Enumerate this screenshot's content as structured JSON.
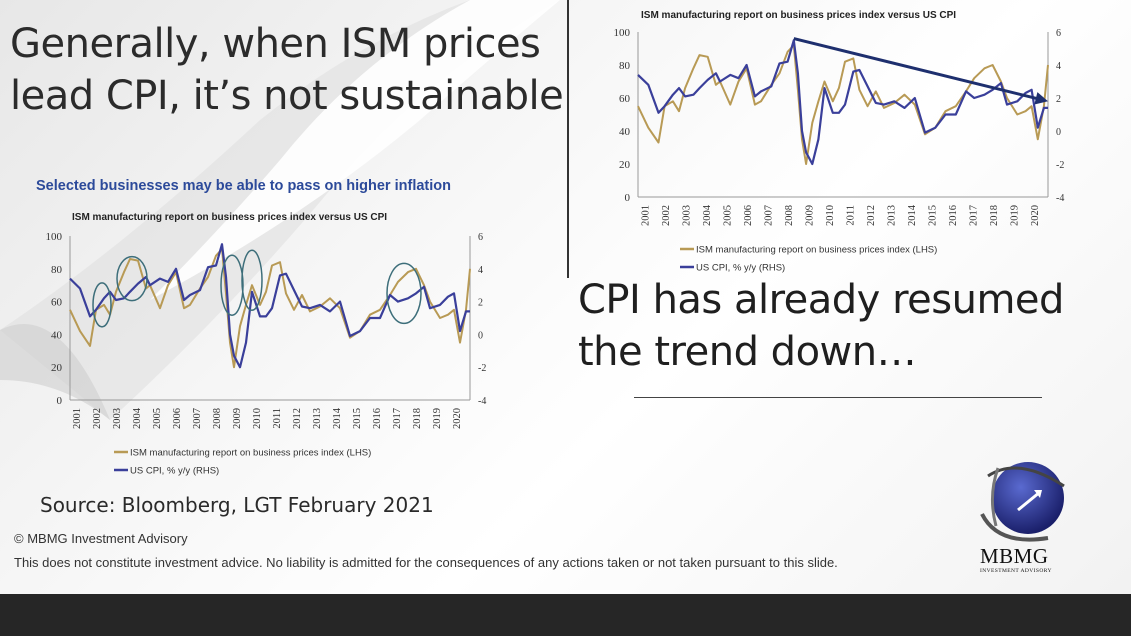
{
  "headline": {
    "line1": "Generally, when ISM prices",
    "line2": "lead CPI, it’s not sustainable"
  },
  "subtitle": {
    "line1": "CPI has already resumed",
    "line2": "the trend down…"
  },
  "source": "Source: Bloomberg, LGT February 2021",
  "copyright": "© MBMG Investment Advisory",
  "disclaimer": "This does not constitute investment advice. No liability is admitted for the consequences of any actions taken or not taken pursuant to this slide.",
  "logo": {
    "name": "MBMG",
    "tagline": "INVESTMENT ADVISORY",
    "icon": "globe-arrow-icon"
  },
  "colors": {
    "ism": "#b89a55",
    "cpi": "#3a3f9a",
    "title_blue": "#2c4a9a",
    "arrow": "#1e2f6e",
    "circle": "#3d6e7a"
  },
  "chart_data": [
    {
      "type": "line",
      "panel": "left",
      "title": "Selected businesses may be able to pass on higher inflation",
      "subtitle": "ISM manufacturing report on business prices index versus US CPI",
      "categories": [
        "2001",
        "2002",
        "2003",
        "2004",
        "2005",
        "2006",
        "2007",
        "2008",
        "2009",
        "2010",
        "2011",
        "2012",
        "2013",
        "2014",
        "2015",
        "2016",
        "2017",
        "2018",
        "2019",
        "2020"
      ],
      "ylim": [
        0,
        100
      ],
      "ylim_right": [
        -4,
        6
      ],
      "y_ticks": [
        "0",
        "20",
        "40",
        "60",
        "80",
        "100"
      ],
      "y_ticks_right": [
        "-4",
        "-2",
        "0",
        "2",
        "4",
        "6"
      ],
      "series": [
        {
          "name": "ISM manufacturing report on business prices index (LHS)",
          "axis": "left",
          "x": [
            2001,
            2001.5,
            2002,
            2002.3,
            2002.7,
            2003,
            2003.3,
            2003.7,
            2004,
            2004.4,
            2004.8,
            2005,
            2005.5,
            2005.9,
            2006.3,
            2006.7,
            2007,
            2007.5,
            2007.9,
            2008.3,
            2008.6,
            2008.8,
            2009,
            2009.2,
            2009.5,
            2009.8,
            2010.1,
            2010.5,
            2010.8,
            2011.1,
            2011.5,
            2011.8,
            2012.2,
            2012.6,
            2013,
            2013.5,
            2014,
            2014.5,
            2015,
            2015.5,
            2016,
            2016.5,
            2017,
            2017.4,
            2017.9,
            2018.3,
            2018.7,
            2019,
            2019.5,
            2019.9,
            2020.2,
            2020.5,
            2020.8,
            2021
          ],
          "y": [
            55,
            42,
            33,
            55,
            58,
            52,
            66,
            78,
            86,
            85,
            68,
            70,
            56,
            70,
            78,
            56,
            58,
            68,
            75,
            88,
            92,
            65,
            35,
            20,
            45,
            58,
            70,
            58,
            66,
            82,
            84,
            65,
            55,
            64,
            54,
            57,
            62,
            56,
            38,
            42,
            52,
            55,
            64,
            72,
            78,
            80,
            70,
            60,
            50,
            52,
            55,
            35,
            55,
            80
          ]
        },
        {
          "name": "US CPI, % y/y (RHS)",
          "axis": "right",
          "x": [
            2001,
            2001.5,
            2002,
            2002.3,
            2002.7,
            2003,
            2003.3,
            2003.7,
            2004,
            2004.4,
            2004.8,
            2005,
            2005.5,
            2005.9,
            2006.3,
            2006.7,
            2007,
            2007.5,
            2007.9,
            2008.3,
            2008.6,
            2008.8,
            2009,
            2009.2,
            2009.5,
            2009.8,
            2010.1,
            2010.5,
            2010.8,
            2011.1,
            2011.5,
            2011.8,
            2012.2,
            2012.6,
            2013,
            2013.5,
            2014,
            2014.5,
            2015,
            2015.5,
            2016,
            2016.5,
            2017,
            2017.4,
            2017.9,
            2018.3,
            2018.7,
            2019,
            2019.5,
            2019.9,
            2020.2,
            2020.5,
            2020.8,
            2021
          ],
          "y": [
            3.4,
            2.8,
            1.1,
            1.5,
            2.2,
            2.6,
            2.1,
            2.2,
            2.6,
            3.1,
            3.5,
            3.0,
            3.4,
            3.2,
            4.0,
            2.1,
            2.4,
            2.7,
            4.1,
            4.2,
            5.5,
            3.5,
            0.0,
            -1.3,
            -2.0,
            -0.5,
            2.6,
            1.1,
            1.1,
            1.6,
            3.6,
            3.7,
            2.7,
            1.7,
            1.6,
            1.8,
            1.4,
            2.0,
            -0.1,
            0.2,
            1.0,
            1.0,
            2.4,
            2.0,
            2.2,
            2.5,
            2.9,
            1.6,
            1.8,
            2.3,
            2.5,
            0.2,
            1.4,
            1.4
          ]
        }
      ],
      "legend_position": "bottom"
    },
    {
      "type": "line",
      "panel": "right",
      "title": "",
      "subtitle": "ISM manufacturing report on business prices index versus US CPI",
      "categories": [
        "2001",
        "2002",
        "2003",
        "2004",
        "2005",
        "2006",
        "2007",
        "2008",
        "2009",
        "2010",
        "2011",
        "2012",
        "2013",
        "2014",
        "2015",
        "2016",
        "2017",
        "2018",
        "2019",
        "2020"
      ],
      "ylim": [
        0,
        100
      ],
      "ylim_right": [
        -4,
        6
      ],
      "y_ticks": [
        "0",
        "20",
        "40",
        "60",
        "80",
        "100"
      ],
      "y_ticks_right": [
        "-4",
        "-2",
        "0",
        "2",
        "4",
        "6"
      ],
      "series": [
        {
          "name": "ISM manufacturing report on business prices index (LHS)",
          "axis": "left",
          "x": [
            2001,
            2001.5,
            2002,
            2002.3,
            2002.7,
            2003,
            2003.3,
            2003.7,
            2004,
            2004.4,
            2004.8,
            2005,
            2005.5,
            2005.9,
            2006.3,
            2006.7,
            2007,
            2007.5,
            2007.9,
            2008.3,
            2008.6,
            2008.8,
            2009,
            2009.2,
            2009.5,
            2009.8,
            2010.1,
            2010.5,
            2010.8,
            2011.1,
            2011.5,
            2011.8,
            2012.2,
            2012.6,
            2013,
            2013.5,
            2014,
            2014.5,
            2015,
            2015.5,
            2016,
            2016.5,
            2017,
            2017.4,
            2017.9,
            2018.3,
            2018.7,
            2019,
            2019.5,
            2019.9,
            2020.2,
            2020.5,
            2020.8,
            2021
          ],
          "y": [
            55,
            42,
            33,
            55,
            58,
            52,
            66,
            78,
            86,
            85,
            68,
            70,
            56,
            70,
            78,
            56,
            58,
            68,
            75,
            88,
            92,
            65,
            35,
            20,
            45,
            58,
            70,
            58,
            66,
            82,
            84,
            65,
            55,
            64,
            54,
            57,
            62,
            56,
            38,
            42,
            52,
            55,
            64,
            72,
            78,
            80,
            70,
            60,
            50,
            52,
            55,
            35,
            55,
            80
          ]
        },
        {
          "name": "US CPI, % y/y (RHS)",
          "axis": "right",
          "x": [
            2001,
            2001.5,
            2002,
            2002.3,
            2002.7,
            2003,
            2003.3,
            2003.7,
            2004,
            2004.4,
            2004.8,
            2005,
            2005.5,
            2005.9,
            2006.3,
            2006.7,
            2007,
            2007.5,
            2007.9,
            2008.3,
            2008.6,
            2008.8,
            2009,
            2009.2,
            2009.5,
            2009.8,
            2010.1,
            2010.5,
            2010.8,
            2011.1,
            2011.5,
            2011.8,
            2012.2,
            2012.6,
            2013,
            2013.5,
            2014,
            2014.5,
            2015,
            2015.5,
            2016,
            2016.5,
            2017,
            2017.4,
            2017.9,
            2018.3,
            2018.7,
            2019,
            2019.5,
            2019.9,
            2020.2,
            2020.5,
            2020.8,
            2021
          ],
          "y": [
            3.4,
            2.8,
            1.1,
            1.5,
            2.2,
            2.6,
            2.1,
            2.2,
            2.6,
            3.1,
            3.5,
            3.0,
            3.4,
            3.2,
            4.0,
            2.1,
            2.4,
            2.7,
            4.1,
            4.2,
            5.5,
            3.5,
            0.0,
            -1.3,
            -2.0,
            -0.5,
            2.6,
            1.1,
            1.1,
            1.6,
            3.6,
            3.7,
            2.7,
            1.7,
            1.6,
            1.8,
            1.4,
            2.0,
            -0.1,
            0.2,
            1.0,
            1.0,
            2.4,
            2.0,
            2.2,
            2.5,
            2.9,
            1.6,
            1.8,
            2.3,
            2.5,
            0.2,
            1.4,
            1.4
          ]
        }
      ],
      "annotations": [
        {
          "type": "arrow",
          "from": [
            2008.6,
            96
          ],
          "to": [
            2021,
            58
          ]
        }
      ],
      "legend_position": "bottom"
    }
  ]
}
